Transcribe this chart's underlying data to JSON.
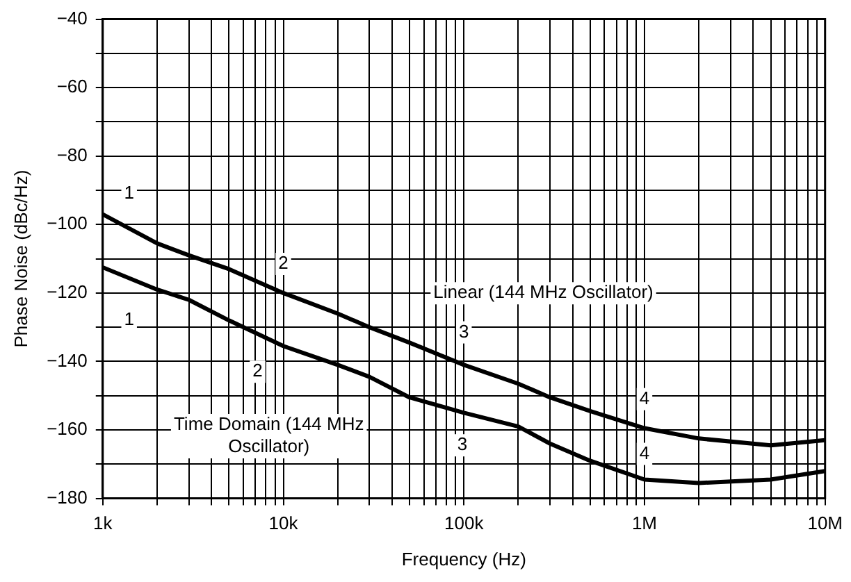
{
  "chart_data": {
    "type": "line",
    "xlabel": "Frequency (Hz)",
    "ylabel": "Phase Noise (dBc/Hz)",
    "log": "x",
    "grid": true,
    "legend": false,
    "marker": "none",
    "line_style": "solid",
    "xlim": [
      1000,
      10000000
    ],
    "xticks": [
      {
        "value": 1000,
        "label": "1k"
      },
      {
        "value": 2000,
        "label": null
      },
      {
        "value": 3000,
        "label": null
      },
      {
        "value": 4000,
        "label": null
      },
      {
        "value": 5000,
        "label": null
      },
      {
        "value": 6000,
        "label": null
      },
      {
        "value": 7000,
        "label": null
      },
      {
        "value": 8000,
        "label": null
      },
      {
        "value": 9000,
        "label": null
      },
      {
        "value": 10000,
        "label": "10k"
      },
      {
        "value": 20000,
        "label": null
      },
      {
        "value": 30000,
        "label": null
      },
      {
        "value": 40000,
        "label": null
      },
      {
        "value": 50000,
        "label": null
      },
      {
        "value": 60000,
        "label": null
      },
      {
        "value": 70000,
        "label": null
      },
      {
        "value": 80000,
        "label": null
      },
      {
        "value": 90000,
        "label": null
      },
      {
        "value": 100000,
        "label": "100k"
      },
      {
        "value": 200000,
        "label": null
      },
      {
        "value": 300000,
        "label": null
      },
      {
        "value": 400000,
        "label": null
      },
      {
        "value": 500000,
        "label": null
      },
      {
        "value": 600000,
        "label": null
      },
      {
        "value": 700000,
        "label": null
      },
      {
        "value": 800000,
        "label": null
      },
      {
        "value": 900000,
        "label": null
      },
      {
        "value": 1000000,
        "label": "1M"
      },
      {
        "value": 2000000,
        "label": null
      },
      {
        "value": 3000000,
        "label": null
      },
      {
        "value": 4000000,
        "label": null
      },
      {
        "value": 5000000,
        "label": null
      },
      {
        "value": 6000000,
        "label": null
      },
      {
        "value": 7000000,
        "label": null
      },
      {
        "value": 8000000,
        "label": null
      },
      {
        "value": 9000000,
        "label": null
      },
      {
        "value": 10000000,
        "label": "10M"
      }
    ],
    "ylim": [
      -180,
      -40
    ],
    "yticks": [
      {
        "value": -180,
        "label": "−180"
      },
      {
        "value": -170,
        "label": null
      },
      {
        "value": -160,
        "label": "−160"
      },
      {
        "value": -150,
        "label": null
      },
      {
        "value": -140,
        "label": "−140"
      },
      {
        "value": -130,
        "label": null
      },
      {
        "value": -120,
        "label": "−120"
      },
      {
        "value": -110,
        "label": null
      },
      {
        "value": -100,
        "label": "−100"
      },
      {
        "value": -90,
        "label": null
      },
      {
        "value": -80,
        "label": "−80"
      },
      {
        "value": -70,
        "label": null
      },
      {
        "value": -60,
        "label": "−60"
      },
      {
        "value": -50,
        "label": null
      },
      {
        "value": -40,
        "label": "−40"
      }
    ],
    "series": [
      {
        "name": "Linear (144 MHz Oscillator)",
        "color": "#000000",
        "x": [
          1000,
          2000,
          3000,
          5000,
          10000,
          20000,
          30000,
          50000,
          100000,
          200000,
          300000,
          500000,
          1000000,
          2000000,
          5000000,
          10000000
        ],
        "values": [
          -97,
          -105.5,
          -109,
          -113,
          -120,
          -126,
          -130,
          -134.5,
          -141,
          -146.5,
          -150.5,
          -154.5,
          -159.5,
          -162.5,
          -164.5,
          -163
        ]
      },
      {
        "name": "Time Domain (144 MHz Oscillator)",
        "color": "#000000",
        "x": [
          1000,
          2000,
          3000,
          5000,
          10000,
          20000,
          30000,
          50000,
          100000,
          200000,
          300000,
          500000,
          1000000,
          2000000,
          5000000,
          10000000
        ],
        "values": [
          -112.5,
          -119,
          -122,
          -128,
          -135.5,
          -141,
          -144.5,
          -150.5,
          -155,
          -159,
          -164,
          -169,
          -174.5,
          -175.5,
          -174.5,
          -172
        ]
      }
    ],
    "annotations": [
      {
        "text": "1",
        "x": 1400,
        "y": -91
      },
      {
        "text": "2",
        "x": 10000,
        "y": -111.5
      },
      {
        "text": "3",
        "x": 100000,
        "y": -131.5
      },
      {
        "text": "4",
        "x": 1000000,
        "y": -151
      },
      {
        "text": "1",
        "x": 1400,
        "y": -128
      },
      {
        "text": "2",
        "x": 7200,
        "y": -143
      },
      {
        "text": "3",
        "x": 98000,
        "y": -164.5
      },
      {
        "text": "4",
        "x": 1000000,
        "y": -167
      }
    ]
  }
}
